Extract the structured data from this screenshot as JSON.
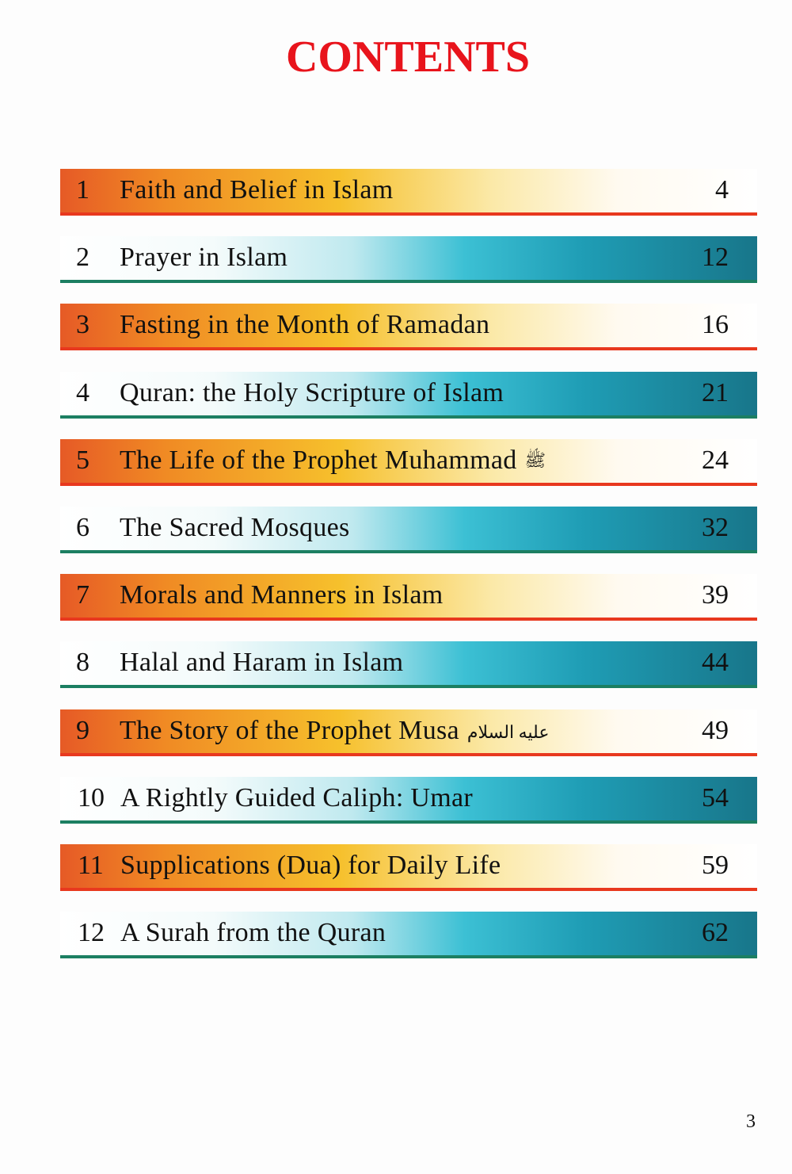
{
  "title": "CONTENTS",
  "entries": [
    {
      "num": "1",
      "title": "Faith and Belief in Islam",
      "honorific": "",
      "page": "4",
      "style": "warm"
    },
    {
      "num": "2",
      "title": "Prayer in Islam",
      "honorific": "",
      "page": "12",
      "style": "cool"
    },
    {
      "num": "3",
      "title": "Fasting in the Month of Ramadan",
      "honorific": "",
      "page": "16",
      "style": "warm"
    },
    {
      "num": "4",
      "title": "Quran: the Holy Scripture of Islam",
      "honorific": "",
      "page": "21",
      "style": "cool"
    },
    {
      "num": "5",
      "title": "The Life of the Prophet Muhammad",
      "honorific": "ﷺ",
      "page": "24",
      "style": "warm"
    },
    {
      "num": "6",
      "title": "The Sacred Mosques",
      "honorific": "",
      "page": "32",
      "style": "cool"
    },
    {
      "num": "7",
      "title": "Morals and Manners in Islam",
      "honorific": "",
      "page": "39",
      "style": "warm"
    },
    {
      "num": "8",
      "title": "Halal and Haram in Islam",
      "honorific": "",
      "page": "44",
      "style": "cool"
    },
    {
      "num": "9",
      "title": "The Story of the Prophet Musa",
      "honorific": "عليه السلام",
      "page": "49",
      "style": "warm"
    },
    {
      "num": "10",
      "title": "A Rightly Guided Caliph: Umar",
      "honorific": "",
      "page": "54",
      "style": "cool"
    },
    {
      "num": "11",
      "title": "Supplications (Dua) for Daily Life",
      "honorific": "",
      "page": "59",
      "style": "warm"
    },
    {
      "num": "12",
      "title": "A Surah from the Quran",
      "honorific": "",
      "page": "62",
      "style": "cool"
    }
  ],
  "page_number": "3",
  "colors": {
    "title": "#e8141c",
    "warm_line": "#e8381e",
    "cool_line": "#1c7f62",
    "warm": "#f08a24",
    "cool": "#1f9db5"
  }
}
